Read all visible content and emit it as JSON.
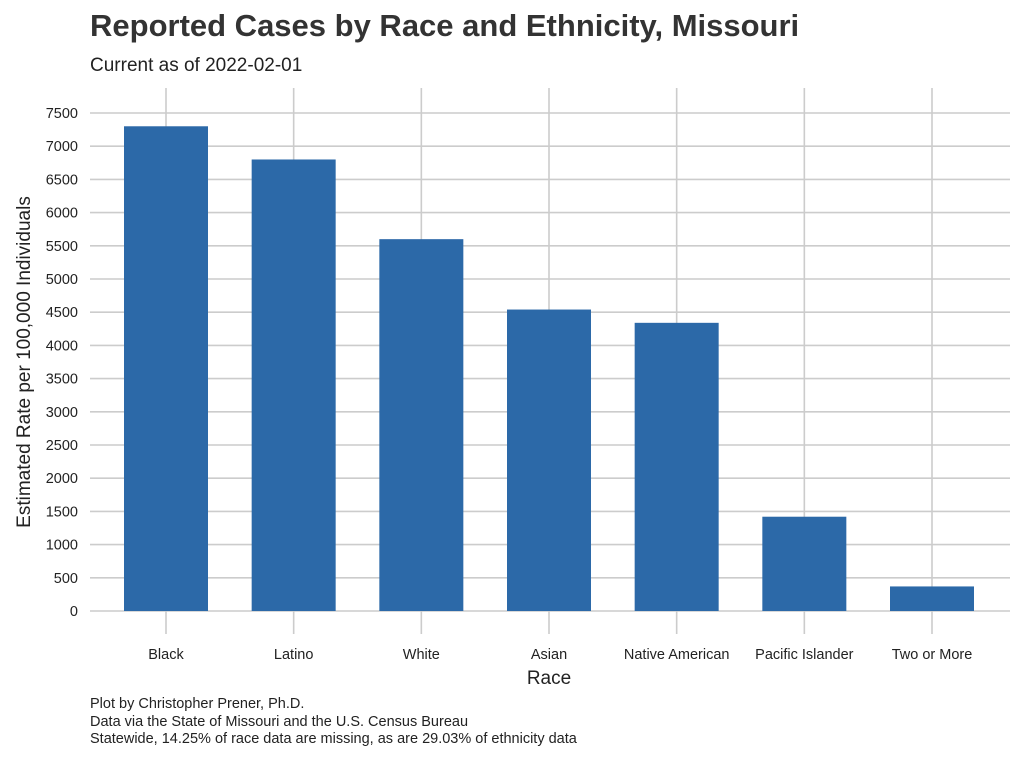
{
  "chart_data": {
    "type": "bar",
    "title": "Reported Cases by Race and Ethnicity, Missouri",
    "subtitle": "Current as of 2022-02-01",
    "xlabel": "Race",
    "ylabel": "Estimated Rate per 100,000 Individuals",
    "categories": [
      "Black",
      "Latino",
      "White",
      "Asian",
      "Native American",
      "Pacific Islander",
      "Two or More"
    ],
    "values": [
      7300,
      6800,
      5600,
      4540,
      4340,
      1420,
      370
    ],
    "ylim": [
      0,
      7500
    ],
    "yticks": [
      0,
      500,
      1000,
      1500,
      2000,
      2500,
      3000,
      3500,
      4000,
      4500,
      5000,
      5500,
      6000,
      6500,
      7000,
      7500
    ],
    "grid": true,
    "bar_color": "#2c69a8",
    "grid_color": "#cccccc",
    "caption": [
      "Plot by Christopher Prener, Ph.D.",
      "Data via the State of Missouri and the U.S. Census Bureau",
      "Statewide, 14.25% of race data are missing, as are 29.03% of ethnicity data"
    ]
  }
}
